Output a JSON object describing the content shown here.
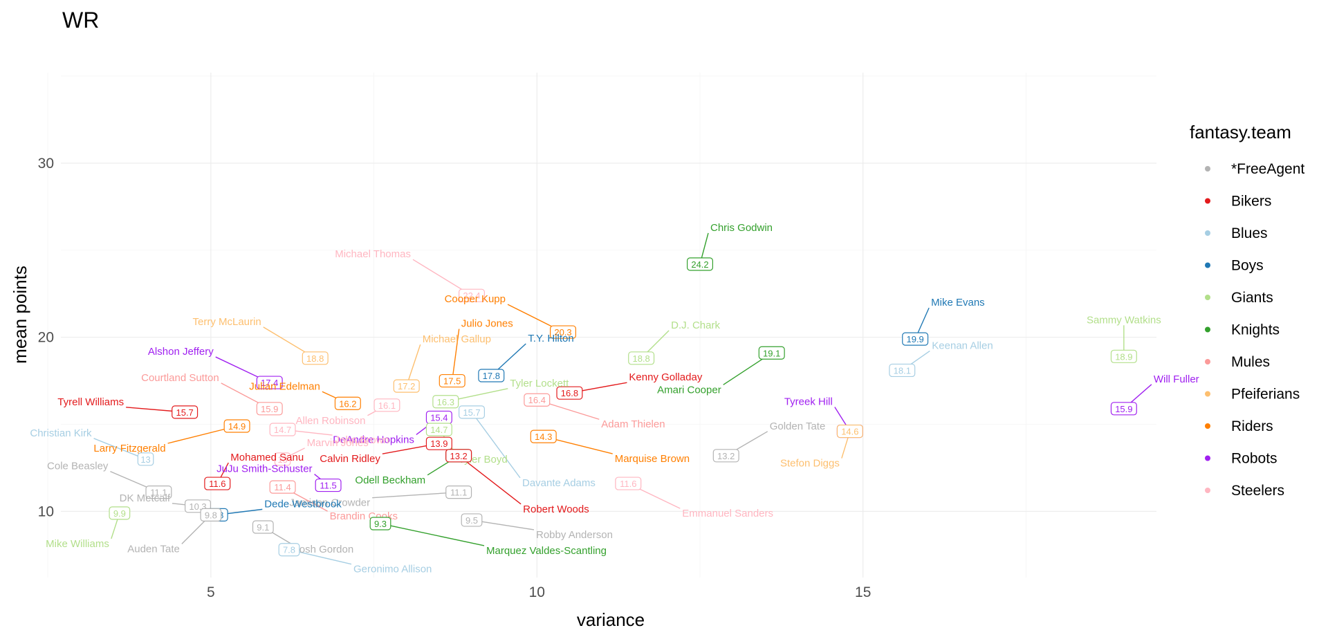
{
  "chart_data": {
    "type": "scatter",
    "title": "WR",
    "xlabel": "variance",
    "ylabel": "mean points",
    "xlim": [
      2.7,
      19.5
    ],
    "ylim": [
      6.2,
      35.2
    ],
    "xticks": [
      5,
      10,
      15
    ],
    "yticks": [
      10,
      20,
      30
    ],
    "grid": true,
    "legend": {
      "title": "fantasy.team",
      "position": "right",
      "entries": [
        "*FreeAgent",
        "Bikers",
        "Blues",
        "Boys",
        "Giants",
        "Knights",
        "Mules",
        "Pfeiferians",
        "Riders",
        "Robots",
        "Steelers"
      ]
    },
    "colors": {
      "*FreeAgent": "#b3b3b3",
      "Bikers": "#e31a1c",
      "Blues": "#a6cee3",
      "Boys": "#1f78b4",
      "Giants": "#b2df8a",
      "Knights": "#33a02c",
      "Mules": "#fb9a99",
      "Pfeiferians": "#fdbf6f",
      "Riders": "#ff7f00",
      "Robots": "#a020f0",
      "Steelers": "#ffb6c1"
    },
    "points": [
      {
        "name": "Chris Godwin",
        "team": "Knights",
        "x": 12.5,
        "y": 24.2,
        "label": "24.2",
        "dx": 12,
        "dy": -45
      },
      {
        "name": "Michael Thomas",
        "team": "Steelers",
        "x": 9.0,
        "y": 22.4,
        "label": "22.4",
        "dx": -85,
        "dy": -52
      },
      {
        "name": "Cooper Kupp",
        "team": "Riders",
        "x": 10.4,
        "y": 20.3,
        "label": "20.3",
        "dx": -80,
        "dy": -40
      },
      {
        "name": "Mike Evans",
        "team": "Boys",
        "x": 15.8,
        "y": 19.9,
        "label": "19.9",
        "dx": 20,
        "dy": -45
      },
      {
        "name": "Sammy Watkins",
        "team": "Giants",
        "x": 19.0,
        "y": 18.9,
        "label": "18.9",
        "dx": 0,
        "dy": -45
      },
      {
        "name": "D.J. Chark",
        "team": "Giants",
        "x": 11.6,
        "y": 18.8,
        "label": "18.8",
        "dx": 40,
        "dy": -40
      },
      {
        "name": "Terry McLaurin",
        "team": "Pfeiferians",
        "x": 6.6,
        "y": 18.8,
        "label": "18.8",
        "dx": -75,
        "dy": -45
      },
      {
        "name": "Keenan Allen",
        "team": "Blues",
        "x": 15.6,
        "y": 18.1,
        "label": "18.1",
        "dx": 40,
        "dy": -28
      },
      {
        "name": "Amari Cooper",
        "team": "Knights",
        "x": 13.6,
        "y": 19.1,
        "label": "19.1",
        "dx": -70,
        "dy": 46
      },
      {
        "name": "Michael Gallup",
        "team": "Pfeiferians",
        "x": 8.0,
        "y": 17.2,
        "label": "17.2",
        "dx": 20,
        "dy": -60
      },
      {
        "name": "Julio Jones",
        "team": "Riders",
        "x": 8.7,
        "y": 17.5,
        "label": "17.5",
        "dx": 10,
        "dy": -75
      },
      {
        "name": "T.Y. Hilton",
        "team": "Boys",
        "x": 9.3,
        "y": 17.8,
        "label": "17.8",
        "dx": 50,
        "dy": -46
      },
      {
        "name": "Alshon Jeffery",
        "team": "Robots",
        "x": 5.9,
        "y": 17.4,
        "label": "17.4",
        "dx": -78,
        "dy": -37
      },
      {
        "name": "Kenny Golladay",
        "team": "Bikers",
        "x": 10.5,
        "y": 16.8,
        "label": "16.8",
        "dx": 83,
        "dy": -15
      },
      {
        "name": "Adam Thielen",
        "team": "Mules",
        "x": 10.0,
        "y": 16.4,
        "label": "16.4",
        "dx": 90,
        "dy": 28
      },
      {
        "name": "Tyler Lockett",
        "team": "Giants",
        "x": 8.6,
        "y": 16.3,
        "label": "16.3",
        "dx": 90,
        "dy": -19
      },
      {
        "name": "Julian Edelman",
        "team": "Riders",
        "x": 7.1,
        "y": 16.2,
        "label": "16.2",
        "dx": -37,
        "dy": -17
      },
      {
        "name": "Allen Robinson",
        "team": "Steelers",
        "x": 7.7,
        "y": 16.1,
        "label": "16.1",
        "dx": -28,
        "dy": 15
      },
      {
        "name": "Courtland Sutton",
        "team": "Mules",
        "x": 5.9,
        "y": 15.9,
        "label": "15.9",
        "dx": -70,
        "dy": -37
      },
      {
        "name": "Tyrell Williams",
        "team": "Bikers",
        "x": 4.6,
        "y": 15.7,
        "label": "15.7",
        "dx": -85,
        "dy": -7
      },
      {
        "name": "Davante Adams",
        "team": "Blues",
        "x": 9.0,
        "y": 15.7,
        "label": "15.7",
        "dx": 70,
        "dy": 95
      },
      {
        "name": "Will Fuller",
        "team": "Robots",
        "x": 19.0,
        "y": 15.9,
        "label": "15.9",
        "dx": 40,
        "dy": -35
      },
      {
        "name": "Tyreek Hill",
        "team": "Robots",
        "x": 14.8,
        "y": 14.6,
        "label": "14.6",
        "dx": -22,
        "dy": -35
      },
      {
        "name": "Stefon Diggs",
        "team": "Pfeiferians",
        "x": 14.8,
        "y": 14.6,
        "label": "14.6",
        "dx": -12,
        "dy": 39
      },
      {
        "name": "DeAndre Hopkins",
        "team": "Robots",
        "x": 8.5,
        "y": 15.4,
        "label": "15.4",
        "dx": -33,
        "dy": 25
      },
      {
        "name": "Larry Fitzgerald",
        "team": "Riders",
        "x": 5.4,
        "y": 14.9,
        "label": "14.9",
        "dx": -100,
        "dy": 25
      },
      {
        "name": "John Brown",
        "team": "Steelers",
        "x": 6.1,
        "y": 14.7,
        "label": "14.7",
        "dx": 72,
        "dy": 8
      },
      {
        "name": "Tyler Boyd",
        "team": "Giants",
        "x": 8.5,
        "y": 14.7,
        "label": "14.7",
        "dx": 25,
        "dy": 36
      },
      {
        "name": "Marvin Jones",
        "team": "Steelers",
        "x": 6.1,
        "y": 13.0,
        "label": "13",
        "dx": 32,
        "dy": -16
      },
      {
        "name": "Marquise Brown",
        "team": "Riders",
        "x": 10.1,
        "y": 14.3,
        "label": "14.3",
        "dx": 100,
        "dy": 25
      },
      {
        "name": "Golden Tate",
        "team": "*FreeAgent",
        "x": 12.9,
        "y": 13.2,
        "label": "13.2",
        "dx": 60,
        "dy": -35
      },
      {
        "name": "Christian Kirk",
        "team": "Blues",
        "x": 4.0,
        "y": 13.0,
        "label": "13",
        "dx": -75,
        "dy": -30
      },
      {
        "name": "Calvin Ridley",
        "team": "Bikers",
        "x": 8.5,
        "y": 13.9,
        "label": "13.9",
        "dx": -82,
        "dy": 15
      },
      {
        "name": "Odell Beckham",
        "team": "Knights",
        "x": 8.8,
        "y": 13.2,
        "label": "13.2",
        "dx": -45,
        "dy": 28
      },
      {
        "name": "Robert Woods",
        "team": "Bikers",
        "x": 8.8,
        "y": 13.2,
        "label": "13.2",
        "dx": 90,
        "dy": 70
      },
      {
        "name": "Mohamed Sanu",
        "team": "Bikers",
        "x": 5.1,
        "y": 11.6,
        "label": "11.6",
        "dx": 16,
        "dy": -30
      },
      {
        "name": "JuJu Smith-Schuster",
        "team": "Robots",
        "x": 6.8,
        "y": 11.5,
        "label": "11.5",
        "dx": -20,
        "dy": -16
      },
      {
        "name": "Cole Beasley",
        "team": "*FreeAgent",
        "x": 4.2,
        "y": 11.1,
        "label": "11.1",
        "dx": -70,
        "dy": -30
      },
      {
        "name": "Jamison Crowder",
        "team": "*FreeAgent",
        "x": 8.8,
        "y": 11.1,
        "label": "11.1",
        "dx": -125,
        "dy": 8
      },
      {
        "name": "Emmanuel Sanders",
        "team": "Steelers",
        "x": 11.4,
        "y": 11.6,
        "label": "11.6",
        "dx": 75,
        "dy": 36
      },
      {
        "name": "Brandin Cooks",
        "team": "Mules",
        "x": 6.1,
        "y": 11.4,
        "label": "11.4",
        "dx": 65,
        "dy": 35
      },
      {
        "name": "DK Metcalf",
        "team": "*FreeAgent",
        "x": 4.8,
        "y": 10.3,
        "label": "10.3",
        "dx": -37,
        "dy": -4
      },
      {
        "name": "Dede Westbrook",
        "team": "Boys",
        "x": 5.1,
        "y": 9.8,
        "label": "9.8",
        "dx": 65,
        "dy": -8
      },
      {
        "name": "Mike Williams",
        "team": "Giants",
        "x": 3.6,
        "y": 9.9,
        "label": "9.9",
        "dx": -12,
        "dy": 37
      },
      {
        "name": "Auden Tate",
        "team": "*FreeAgent",
        "x": 5.0,
        "y": 9.8,
        "label": "9.8",
        "dx": -42,
        "dy": 42
      },
      {
        "name": "Robby Anderson",
        "team": "*FreeAgent",
        "x": 9.0,
        "y": 9.5,
        "label": "9.5",
        "dx": 90,
        "dy": 14
      },
      {
        "name": "Marquez Valdes-Scantling",
        "team": "Knights",
        "x": 7.6,
        "y": 9.3,
        "label": "9.3",
        "dx": 150,
        "dy": 32
      },
      {
        "name": "Josh Gordon",
        "team": "*FreeAgent",
        "x": 5.8,
        "y": 9.1,
        "label": "9.1",
        "dx": 42,
        "dy": 25
      },
      {
        "name": "Geronimo Allison",
        "team": "Blues",
        "x": 6.2,
        "y": 7.8,
        "label": "7.8",
        "dx": 90,
        "dy": 21
      }
    ]
  }
}
